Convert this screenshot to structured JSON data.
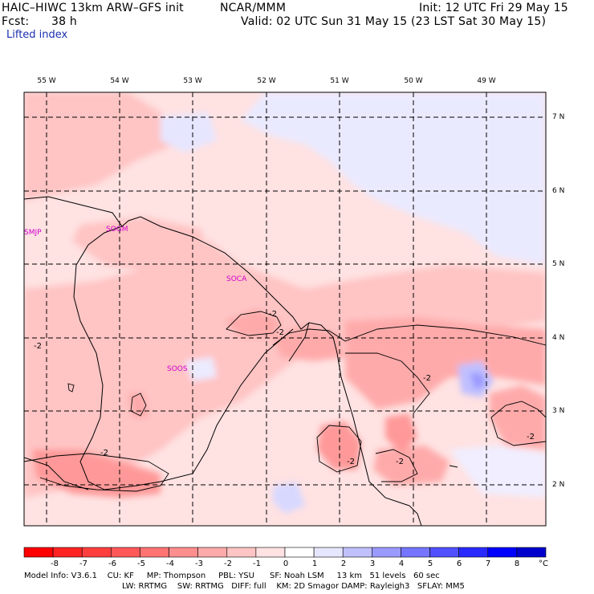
{
  "header": {
    "title": "HAIC–HIWC 13km ARW–GFS init",
    "org": "NCAR/MMM",
    "fcst_label": "Fcst:",
    "fcst_value": "38 h",
    "init": "Init: 12 UTC Fri 29 May 15",
    "valid": "Valid: 02 UTC Sun 31 May 15 (23 LST Sat 30 May 15)",
    "field": "Lifted index"
  },
  "map": {
    "lon_labels": [
      "55 W",
      "54 W",
      "53 W",
      "52 W",
      "51 W",
      "50 W",
      "49 W"
    ],
    "lat_labels": [
      "7 N",
      "6 N",
      "5 N",
      "4 N",
      "3 N",
      "2 N"
    ],
    "stations": [
      "SMJP",
      "SOGM",
      "SOCA",
      "SOOS"
    ],
    "contour_labels": [
      "-2",
      "-2",
      "-2",
      "-2",
      "-2",
      "-2",
      "-2",
      "-2",
      "-2"
    ]
  },
  "legend": {
    "labels": [
      "-8",
      "-7",
      "-6",
      "-5",
      "-4",
      "-3",
      "-2",
      "-1",
      "0",
      "1",
      "2",
      "3",
      "4",
      "5",
      "6",
      "7",
      "8"
    ],
    "unit": "°C",
    "colors": [
      "#ff0000",
      "#ff2323",
      "#ff3e3e",
      "#ff5858",
      "#ff7373",
      "#ff8e8e",
      "#ffaaaa",
      "#ffc4c4",
      "#ffe2e2",
      "#ffffff",
      "#e6e6ff",
      "#c0c0ff",
      "#9a9aff",
      "#7575ff",
      "#5050ff",
      "#2a2aff",
      "#0000ff",
      "#0000cc"
    ]
  },
  "model_info": {
    "line1": "Model Info: V3.6.1    CU: KF     MP: Thompson     PBL: YSU      SF: Noah LSM     13 km   51 levels   60 sec",
    "line2": "LW: RRTMG    SW: RRTMG   DIFF: full    KM: 2D Smagor DAMP: Rayleigh3   SFLAY: MM5"
  }
}
